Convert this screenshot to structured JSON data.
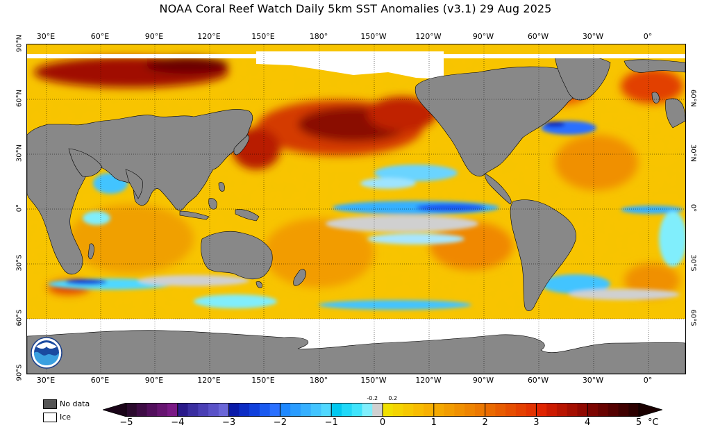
{
  "title": "NOAA Coral Reef Watch Daily 5km SST Anomalies  (v3.1)    29 Aug 2025",
  "longitude_labels": [
    {
      "text": "30°E"
    },
    {
      "text": "60°E"
    },
    {
      "text": "90°E"
    },
    {
      "text": "120°E"
    },
    {
      "text": "150°E"
    },
    {
      "text": "180°"
    },
    {
      "text": "150°W"
    },
    {
      "text": "120°W"
    },
    {
      "text": "90°W"
    },
    {
      "text": "60°W"
    },
    {
      "text": "30°W"
    },
    {
      "text": "0°"
    }
  ],
  "latitude_labels_left": [
    "90°N",
    "60°N",
    "30°N",
    "0°",
    "30°S",
    "60°S",
    "90°S"
  ],
  "latitude_labels_right": [
    "60°N",
    "30°N",
    "0°",
    "30°S",
    "60°S"
  ],
  "legend": {
    "no_data_label": "No data",
    "no_data_color": "#555555",
    "ice_label": "Ice",
    "ice_color": "#ffffff"
  },
  "colorbar": {
    "unit": "°C",
    "min": -5,
    "max": 5,
    "tick_labels": [
      "−5",
      "−4",
      "−3",
      "−2",
      "−1",
      "0",
      "1",
      "2",
      "3",
      "4",
      "5"
    ],
    "small_labels": [
      "-0.2",
      "0.2"
    ],
    "colors": [
      "#2b0a2e",
      "#3e0c45",
      "#520f5c",
      "#661470",
      "#7a1985",
      "#2a1a8a",
      "#3a2ea0",
      "#4a3fb5",
      "#5a52c8",
      "#6a66d8",
      "#0a1aa8",
      "#0c2cc4",
      "#1040dc",
      "#1a5af0",
      "#2a70ff",
      "#1e88ff",
      "#2a9cff",
      "#36b0ff",
      "#42c4ff",
      "#50d8ff",
      "#00c8f0",
      "#20d8f8",
      "#40e4fc",
      "#80eefc",
      "#d0d0d0",
      "#f0e000",
      "#f4d400",
      "#f6c800",
      "#f8bc00",
      "#f8b000",
      "#f4a800",
      "#f29c00",
      "#f09000",
      "#ee8400",
      "#ec7800",
      "#ea6a00",
      "#e85c00",
      "#e64e00",
      "#e44000",
      "#e23200",
      "#e02400",
      "#cc1a00",
      "#b81400",
      "#a40e00",
      "#900800",
      "#7c0400",
      "#680200",
      "#540000",
      "#400000",
      "#2c0000"
    ]
  },
  "map_colors": {
    "ocean_base": "#f6c400",
    "land": "#888888",
    "ice": "#ffffff",
    "grid": "#000000"
  }
}
